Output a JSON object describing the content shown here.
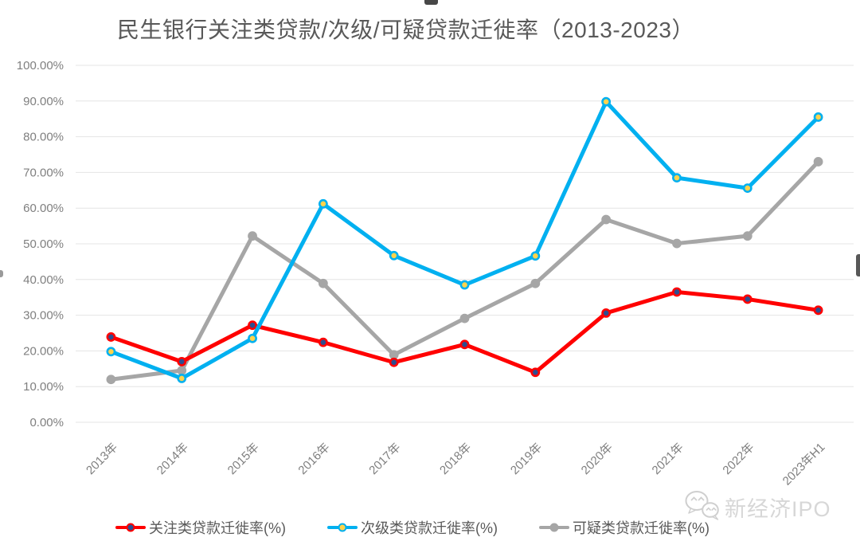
{
  "title": "民生银行关注类贷款/次级/可疑贷款迁徙率（2013-2023）",
  "chart_data": {
    "type": "line",
    "title": "民生银行关注类贷款/次级/可疑贷款迁徙率（2013-2023）",
    "categories": [
      "2013年",
      "2014年",
      "2015年",
      "2016年",
      "2017年",
      "2018年",
      "2019年",
      "2020年",
      "2021年",
      "2022年",
      "2023年H1"
    ],
    "y_tick_labels": [
      "0.00%",
      "10.00%",
      "20.00%",
      "30.00%",
      "40.00%",
      "50.00%",
      "60.00%",
      "70.00%",
      "80.00%",
      "90.00%",
      "100.00%"
    ],
    "ylim": [
      0,
      100
    ],
    "ytick_step": 10,
    "grid": true,
    "legend_position": "bottom",
    "series": [
      {
        "name": "关注类贷款迁徙率(%)",
        "color": "#FF0000",
        "marker_fill": "#2F4D8F",
        "values": [
          23.9,
          17.0,
          27.2,
          22.4,
          16.8,
          21.8,
          14.0,
          30.6,
          36.5,
          34.5,
          31.4
        ]
      },
      {
        "name": "次级类贷款迁徙率(%)",
        "color": "#00B0F0",
        "marker_fill": "#FFD34D",
        "values": [
          19.8,
          12.3,
          23.5,
          61.2,
          46.7,
          38.5,
          46.6,
          89.8,
          68.5,
          65.6,
          85.5
        ]
      },
      {
        "name": "可疑类贷款迁徙率(%)",
        "color": "#A6A6A6",
        "marker_fill": "#A6A6A6",
        "values": [
          12.0,
          14.5,
          52.2,
          38.9,
          18.9,
          29.1,
          38.9,
          56.8,
          50.1,
          52.2,
          73.0
        ]
      }
    ]
  },
  "colors": {
    "gridline": "#E4E4E4",
    "axis_label": "#7F7F7F",
    "title_text": "#595959",
    "legend_text": "#595959",
    "watermark": "#D7D7D7"
  },
  "watermark": {
    "icon": "wechat-icon",
    "text": "新经济IPO"
  }
}
